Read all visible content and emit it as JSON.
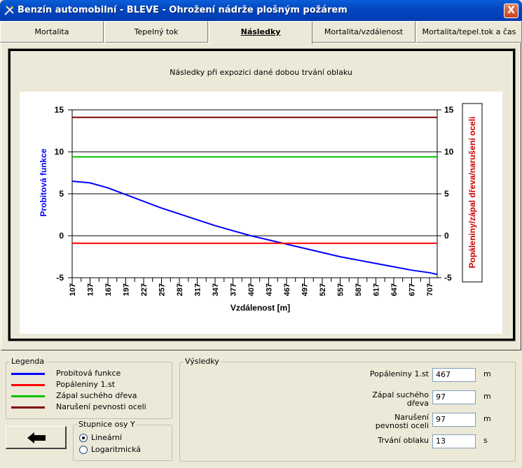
{
  "window": {
    "title": "Benzín automobilní - BLEVE - Ohrožení nádrže plošným požárem",
    "close_label": "X"
  },
  "tabs": [
    {
      "label": "Mortalita"
    },
    {
      "label": "Tepelný tok"
    },
    {
      "label": "Následky",
      "active": true
    },
    {
      "label": "Mortalita/vzdálenost"
    },
    {
      "label": "Mortalita/tepel.tok a čas"
    }
  ],
  "chart_data": {
    "type": "line",
    "title": "Následky při expozici dané dobou trvání oblaku",
    "xlabel": "Vzdálenost [m]",
    "ylabel_left": "Probitová funkce",
    "ylabel_right": "Popáleniny/zápal dřeva/narušení oceli",
    "ylim": [
      -5,
      15
    ],
    "yticks": [
      "15",
      "10",
      "5",
      "0",
      "-5"
    ],
    "xlim": [
      107,
      720
    ],
    "xticks": [
      "107",
      "137",
      "167",
      "197",
      "227",
      "257",
      "287",
      "317",
      "347",
      "377",
      "407",
      "437",
      "467",
      "497",
      "527",
      "557",
      "587",
      "617",
      "647",
      "677",
      "707"
    ],
    "grid": true,
    "series": [
      {
        "name": "Probitová funkce",
        "color": "#0000ff",
        "x": [
          107,
          137,
          167,
          197,
          227,
          257,
          287,
          317,
          347,
          377,
          407,
          437,
          467,
          497,
          527,
          557,
          587,
          617,
          647,
          677,
          707,
          720
        ],
        "y": [
          6.5,
          6.3,
          5.7,
          4.9,
          4.1,
          3.3,
          2.6,
          1.9,
          1.2,
          0.6,
          0.0,
          -0.5,
          -1.0,
          -1.5,
          -2.0,
          -2.5,
          -2.9,
          -3.3,
          -3.7,
          -4.1,
          -4.4,
          -4.6
        ]
      },
      {
        "name": "Popáleniny 1.st",
        "color": "#ff0000",
        "x": [
          107,
          720
        ],
        "y": [
          -0.9,
          -0.9
        ]
      },
      {
        "name": "Zápal suchého dřeva",
        "color": "#00c000",
        "x": [
          107,
          720
        ],
        "y": [
          9.4,
          9.4
        ]
      },
      {
        "name": "Narušení pevnosti oceli",
        "color": "#800000",
        "x": [
          107,
          720
        ],
        "y": [
          14.1,
          14.1
        ]
      }
    ]
  },
  "legend": {
    "title": "Legenda",
    "items": [
      {
        "label": "Probitová funkce",
        "color": "#0000ff"
      },
      {
        "label": "Popáleniny 1.st",
        "color": "#ff0000"
      },
      {
        "label": "Zápal suchého dřeva",
        "color": "#00c000"
      },
      {
        "label": "Narušení pevnosti oceli",
        "color": "#800000"
      }
    ]
  },
  "scale": {
    "title": "Stupnice osy Y",
    "options": [
      {
        "label": "Lineární",
        "checked": true
      },
      {
        "label": "Logaritmická",
        "checked": false
      }
    ]
  },
  "results": {
    "title": "Výsledky",
    "rows": [
      {
        "label": "Popáleniny 1.st",
        "value": "467",
        "unit": "m"
      },
      {
        "label": "Zápal suchého\ndřeva",
        "value": "97",
        "unit": "m"
      },
      {
        "label": "Narušení\npevnosti oceli",
        "value": "97",
        "unit": "m"
      },
      {
        "label": "Trvání oblaku",
        "value": "13",
        "unit": "s"
      }
    ]
  }
}
